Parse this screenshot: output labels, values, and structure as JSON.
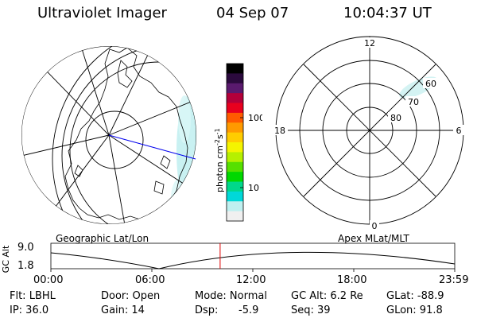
{
  "header": {
    "instrument": "Ultraviolet Imager",
    "date": "04 Sep 07",
    "time": "10:04:37 UT"
  },
  "colorbar": {
    "label": "photon cm",
    "label_sup1": "-2",
    "label_s": "s",
    "label_sup2": "-1",
    "ticks": [
      "100",
      "10"
    ],
    "colors": [
      "#000000",
      "#2b0a3d",
      "#5a1a6e",
      "#b3003a",
      "#e8001e",
      "#ff5a00",
      "#ff9a00",
      "#ffcc00",
      "#f4f400",
      "#b6f000",
      "#56e000",
      "#00d800",
      "#00d88a",
      "#00d8d8",
      "#bff0f0",
      "#f0f0f0"
    ]
  },
  "left_panel": {
    "label": "Geographic Lat/Lon"
  },
  "right_panel": {
    "label": "Apex MLat/MLT",
    "mlt_labels": {
      "top": "12",
      "left": "18",
      "right": "6",
      "bottom": "0"
    },
    "lat_labels": [
      "60",
      "70",
      "80"
    ]
  },
  "timeline": {
    "ylabel": "GC Alt",
    "ytick_top": "9.0",
    "ytick_bottom": "1.8",
    "xticks": [
      "00:00",
      "06:00",
      "12:00",
      "18:00",
      "23:59"
    ],
    "current_time_fraction": 0.419,
    "marker_color": "#e00000"
  },
  "info": {
    "flt": "Flt: LBHL",
    "ip": "IP: 36.0",
    "door": "Door: Open",
    "gain": "Gain: 14",
    "mode": "Mode: Normal",
    "dsp": "Dsp:",
    "dsp_value": "-5.9",
    "gc_alt": "GC Alt: 6.2 Re",
    "seq": "Seq: 39",
    "glat": "GLat: -88.9",
    "glon": "GLon: 91.8"
  }
}
